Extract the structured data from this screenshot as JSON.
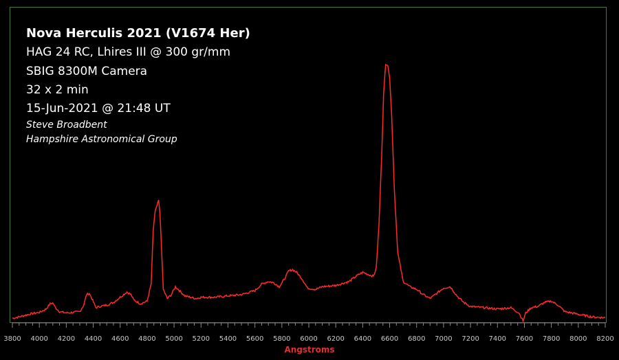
{
  "chart_data": {
    "type": "line",
    "title": "Nova Herculis 2021 (V1674 Her)",
    "annotations": [
      "HAG 24 RC, Lhires III @ 300 gr/mm",
      "SBIG 8300M Camera",
      "32 x 2 min",
      "15-Jun-2021 @ 21:48 UT",
      "Steve Broadbent",
      "Hampshire Astronomical Group"
    ],
    "xlabel": "Angstroms",
    "ylabel": "",
    "xlim": [
      3800,
      8200
    ],
    "ylim": [
      0,
      1.0
    ],
    "grid": false,
    "line_color": "#ff2a2a",
    "frame_color": "#3f7a3f",
    "label_color": "#e03030",
    "xticks": [
      3800,
      4000,
      4200,
      4400,
      4600,
      4800,
      5000,
      5200,
      5400,
      5600,
      5800,
      6000,
      6200,
      6400,
      6600,
      6800,
      7000,
      7200,
      7400,
      7600,
      7800,
      8000,
      8200
    ],
    "series": [
      {
        "x": [
          3800,
          3850,
          3900,
          3950,
          4000,
          4050,
          4080,
          4100,
          4120,
          4150,
          4200,
          4250,
          4300,
          4330,
          4350,
          4370,
          4390,
          4420,
          4450,
          4500,
          4550,
          4600,
          4650,
          4680,
          4700,
          4750,
          4800,
          4830,
          4845,
          4860,
          4875,
          4885,
          4895,
          4905,
          4920,
          4950,
          4980,
          5010,
          5040,
          5080,
          5120,
          5160,
          5200,
          5300,
          5400,
          5500,
          5600,
          5650,
          5700,
          5740,
          5780,
          5820,
          5850,
          5880,
          5910,
          5950,
          5990,
          6050,
          6100,
          6200,
          6300,
          6350,
          6400,
          6450,
          6480,
          6500,
          6520,
          6540,
          6555,
          6570,
          6585,
          6600,
          6615,
          6635,
          6660,
          6700,
          6750,
          6800,
          6850,
          6900,
          6950,
          7000,
          7050,
          7100,
          7150,
          7200,
          7300,
          7400,
          7500,
          7560,
          7590,
          7610,
          7650,
          7700,
          7750,
          7800,
          7850,
          7900,
          8000,
          8100,
          8200
        ],
        "y": [
          0.01,
          0.015,
          0.022,
          0.028,
          0.032,
          0.045,
          0.065,
          0.068,
          0.05,
          0.035,
          0.03,
          0.032,
          0.035,
          0.06,
          0.1,
          0.105,
          0.085,
          0.05,
          0.055,
          0.06,
          0.07,
          0.09,
          0.11,
          0.1,
          0.08,
          0.065,
          0.075,
          0.14,
          0.34,
          0.42,
          0.44,
          0.46,
          0.41,
          0.3,
          0.12,
          0.085,
          0.1,
          0.13,
          0.115,
          0.095,
          0.09,
          0.085,
          0.09,
          0.09,
          0.095,
          0.1,
          0.115,
          0.14,
          0.15,
          0.145,
          0.13,
          0.16,
          0.19,
          0.195,
          0.185,
          0.16,
          0.125,
          0.12,
          0.13,
          0.135,
          0.15,
          0.17,
          0.185,
          0.175,
          0.17,
          0.2,
          0.36,
          0.62,
          0.86,
          0.98,
          0.975,
          0.93,
          0.78,
          0.5,
          0.26,
          0.15,
          0.13,
          0.12,
          0.1,
          0.085,
          0.105,
          0.125,
          0.13,
          0.095,
          0.07,
          0.055,
          0.05,
          0.045,
          0.05,
          0.03,
          0.0,
          0.03,
          0.05,
          0.055,
          0.07,
          0.075,
          0.06,
          0.035,
          0.025,
          0.015,
          0.012
        ]
      }
    ]
  }
}
